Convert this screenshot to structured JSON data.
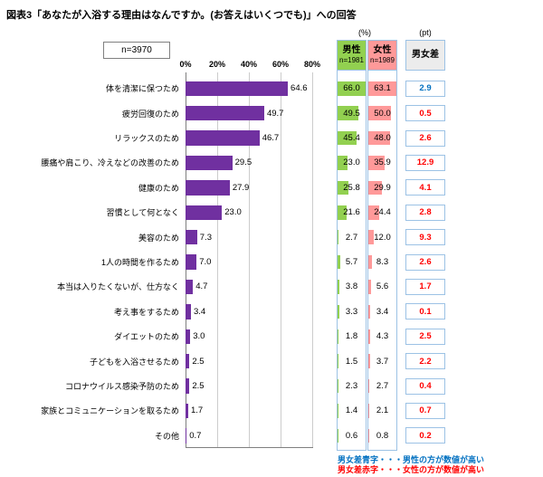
{
  "chart_data": {
    "type": "bar",
    "orientation": "horizontal",
    "title": "図表3「あなたが入浴する理由はなんですか。(お答えはいくつでも)」への回答",
    "sample_note": "n=3970",
    "xlim": [
      0,
      80
    ],
    "x_ticks": [
      "0%",
      "20%",
      "40%",
      "60%",
      "80%"
    ],
    "grid": true,
    "units": {
      "pct": "(%)",
      "pt": "(pt)"
    },
    "categories": [
      "体を清潔に保つため",
      "疲労回復のため",
      "リラックスのため",
      "腰痛や肩こり、冷えなどの改善のため",
      "健康のため",
      "習慣として何となく",
      "美容のため",
      "1人の時間を作るため",
      "本当は入りたくないが、仕方なく",
      "考え事をするため",
      "ダイエットのため",
      "子どもを入浴させるため",
      "コロナウイルス感染予防のため",
      "家族とコミュニケーションを取るため",
      "その他"
    ],
    "values": [
      64.6,
      49.7,
      46.7,
      29.5,
      27.9,
      23.0,
      7.3,
      7.0,
      4.7,
      3.4,
      3.0,
      2.5,
      2.5,
      1.7,
      0.7
    ],
    "series": [
      {
        "name": "男性",
        "n": "n=1981",
        "values": [
          66.0,
          49.5,
          45.4,
          23.0,
          25.8,
          21.6,
          2.7,
          5.7,
          3.8,
          3.3,
          1.8,
          1.5,
          2.3,
          1.4,
          0.6
        ]
      },
      {
        "name": "女性",
        "n": "n=1989",
        "values": [
          63.1,
          50.0,
          48.0,
          35.9,
          29.9,
          24.4,
          12.0,
          8.3,
          5.6,
          3.4,
          4.3,
          3.7,
          2.7,
          2.1,
          0.8
        ]
      }
    ],
    "diff": {
      "name": "男女差",
      "values": [
        2.9,
        0.5,
        2.6,
        12.9,
        4.1,
        2.8,
        9.3,
        2.6,
        1.7,
        0.1,
        2.5,
        2.2,
        0.4,
        0.7,
        0.2
      ],
      "higher": [
        "male",
        "female",
        "female",
        "female",
        "female",
        "female",
        "female",
        "female",
        "female",
        "female",
        "female",
        "female",
        "female",
        "female",
        "female"
      ]
    }
  },
  "legend": {
    "blue_note": "男女差青字・・・男性の方が数値が高い",
    "red_note": "男女差赤字・・・女性の方が数値が高い"
  },
  "colors": {
    "bar_purple": "#7030A0",
    "male_green": "#92D050",
    "female_pink": "#FF9999",
    "diff_blue": "#0070C0",
    "diff_red": "#FF0000"
  }
}
